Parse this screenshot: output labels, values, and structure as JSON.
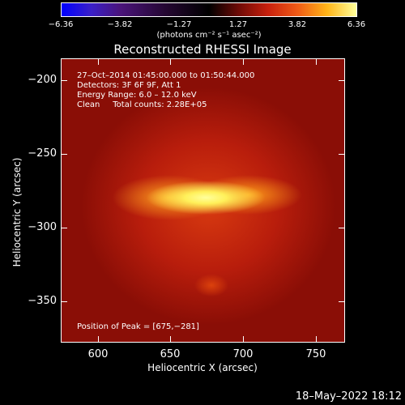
{
  "colorbar": {
    "ticks": [
      "−6.36",
      "−3.82",
      "−1.27",
      "1.27",
      "3.82",
      "6.36"
    ],
    "unit": "(photons cm⁻² s⁻¹ asec⁻²)"
  },
  "plot": {
    "title": "Reconstructed RHESSI Image",
    "info_lines": [
      "27–Oct–2014 01:45:00.000 to 01:50:44.000",
      "Detectors: 3F 6F 9F, Att 1",
      "Energy Range: 6.0 – 12.0 keV",
      "Clean     Total counts: 2.28E+05"
    ],
    "peak_label": "Position of Peak = [675,−281]",
    "x_axis": {
      "title": "Heliocentric X (arcsec)",
      "ticks": [
        "600",
        "650",
        "700",
        "750"
      ]
    },
    "y_axis": {
      "title": "Heliocentric Y (arcsec)",
      "ticks": [
        "−200",
        "−250",
        "−300",
        "−350"
      ]
    }
  },
  "timestamp": "18–May–2022 18:12"
}
